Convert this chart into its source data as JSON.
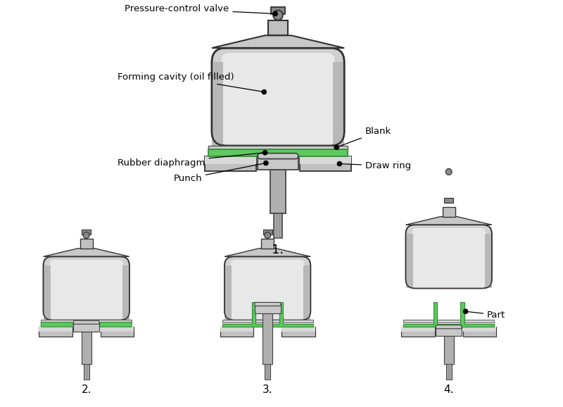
{
  "background_color": "#ffffff",
  "labels": {
    "step1": "1.",
    "step2": "2.",
    "step3": "3.",
    "step4": "4."
  },
  "annotations": {
    "pressure_control_valve": "Pressure-control valve",
    "forming_cavity": "Forming cavity (oil filled)",
    "rubber_diaphragm": "Rubber diaphragm",
    "punch": "Punch",
    "blank": "Blank",
    "draw_ring": "Draw ring",
    "part": "Part"
  },
  "colors": {
    "body_fill": "#d8d8d8",
    "body_inner": "#e8e8e8",
    "body_side": "#aaaaaa",
    "body_edge": "#333333",
    "green_bright": "#5dc95f",
    "green_dark": "#3a8a3c",
    "punch_fill": "#b8b8b8",
    "punch_edge": "#444444",
    "ring_fill": "#c0c0c0",
    "ring_edge": "#333333",
    "valve_fill": "#999999",
    "white": "#ffffff",
    "text_color": "#000000",
    "blank_fill": "#d0d0d0"
  }
}
